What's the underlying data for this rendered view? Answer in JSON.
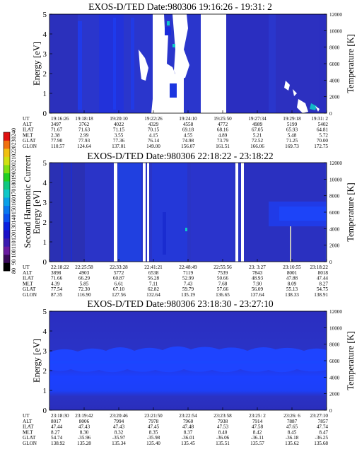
{
  "colorbar": {
    "label": "Second Harmonic Current",
    "ticks": [
      "80",
      "90",
      "100",
      "110",
      "120",
      "130",
      "140",
      "150",
      "160",
      "170",
      "180",
      "190",
      "200",
      "210",
      "220",
      "230",
      "240"
    ],
    "colors": [
      "#000000",
      "#3a0a5a",
      "#6a1aa0",
      "#3a1ab0",
      "#1a10c8",
      "#0a20e0",
      "#0a50f0",
      "#0a78f0",
      "#0aa0e8",
      "#10c8c8",
      "#10c880",
      "#20d020",
      "#80e010",
      "#d0e010",
      "#f0c010",
      "#f07010",
      "#e01010"
    ]
  },
  "row_labels": [
    "UT",
    "ALT",
    "ILAT",
    "MLT",
    "GLAT",
    "GLON"
  ],
  "panels": [
    {
      "title": "EXOS-D/TED   Date:980306  19:16:26 - 19:31: 2",
      "ylabel": "Energy [eV]",
      "y2label": "Temperature [K]",
      "yticks": [
        "0",
        "1",
        "2",
        "3",
        "4",
        "5"
      ],
      "y2ticks": [
        "0",
        "2000",
        "4000",
        "6000",
        "8000",
        "10000",
        "12000"
      ],
      "ylim": [
        0,
        5
      ],
      "y2lim": [
        0,
        12000
      ],
      "ephemeris": [
        {
          "UT": "19:16:26",
          "ALT": "3497",
          "ILAT": "71.67",
          "MLT": "2.38",
          "GLAT": "77.90",
          "GLON": "110.57"
        },
        {
          "UT": "19:18:18",
          "ALT": "3762",
          "ILAT": "71.63",
          "MLT": "2.99",
          "GLAT": "77.93",
          "GLON": "124.64"
        },
        {
          "UT": "19:20:10",
          "ALT": "4022",
          "ILAT": "71.15",
          "MLT": "3.55",
          "GLAT": "77.36",
          "GLON": "137.01"
        },
        {
          "UT": "19:22:26",
          "ALT": "4329",
          "ILAT": "70.15",
          "MLT": "4.15",
          "GLAT": "76.14",
          "GLON": "149.00"
        },
        {
          "UT": "19:24:10",
          "ALT": "4558",
          "ILAT": "69.18",
          "MLT": "4.55",
          "GLAT": "74.98",
          "GLON": "156.07"
        },
        {
          "UT": "19:25:50",
          "ALT": "4772",
          "ILAT": "68.16",
          "MLT": "4.89",
          "GLAT": "73.79",
          "GLON": "161.51"
        },
        {
          "UT": "19:27:34",
          "ALT": "4989",
          "ILAT": "67.05",
          "MLT": "5.21",
          "GLAT": "72.52",
          "GLON": "166.06"
        },
        {
          "UT": "19:29:18",
          "ALT": "5199",
          "ILAT": "65.93",
          "MLT": "5.48",
          "GLAT": "71.25",
          "GLON": "169.73"
        },
        {
          "UT": "19:31: 2",
          "ALT": "5402",
          "ILAT": "64.81",
          "MLT": "5.72",
          "GLAT": "70.00",
          "GLON": "172.75"
        }
      ]
    },
    {
      "title": "EXOS-D/TED   Date:980306  22:18:22 - 23:18:22",
      "ylabel": "Energy [eV]",
      "y2label": "Temperature [K]",
      "yticks": [
        "0",
        "1",
        "2",
        "3",
        "4",
        "5"
      ],
      "y2ticks": [
        "0",
        "2000",
        "4000",
        "6000",
        "8000",
        "10000",
        "12000"
      ],
      "ylim": [
        0,
        5
      ],
      "y2lim": [
        0,
        12000
      ],
      "ephemeris": [
        {
          "UT": "22:18:22",
          "ALT": "3898",
          "ILAT": "71.66",
          "MLT": "4.39",
          "GLAT": "77.54",
          "GLON": "87.35"
        },
        {
          "UT": "22:25:58",
          "ALT": "4903",
          "ILAT": "66.29",
          "MLT": "5.85",
          "GLAT": "72.30",
          "GLON": "116.90"
        },
        {
          "UT": "22:33:28",
          "ALT": "5772",
          "ILAT": "60.87",
          "MLT": "6.61",
          "GLAT": "67.10",
          "GLON": "127.56"
        },
        {
          "UT": "22:41:21",
          "ALT": "6538",
          "ILAT": "56.28",
          "MLT": "7.11",
          "GLAT": "62.82",
          "GLON": "132.64"
        },
        {
          "UT": "22:48:49",
          "ALT": "7119",
          "ILAT": "52.99",
          "MLT": "7.43",
          "GLAT": "59.79",
          "GLON": "135.19"
        },
        {
          "UT": "22:55:56",
          "ALT": "7539",
          "ILAT": "50.66",
          "MLT": "7.68",
          "GLAT": "57.66",
          "GLON": "136.65"
        },
        {
          "UT": "23: 3:27",
          "ALT": "7843",
          "ILAT": "48.93",
          "MLT": "7.90",
          "GLAT": "56.09",
          "GLON": "137.64"
        },
        {
          "UT": "23:10:55",
          "ALT": "8001",
          "ILAT": "47.88",
          "MLT": "8.09",
          "GLAT": "55.13",
          "GLON": "138.33"
        },
        {
          "UT": "23:18:22",
          "ALT": "8018",
          "ILAT": "47.44",
          "MLT": "8.27",
          "GLAT": "54.75",
          "GLON": "138.91"
        }
      ]
    },
    {
      "title": "EXOS-D/TED   Date:980306  23:18:30 - 23:27:10",
      "ylabel": "Energy [eV]",
      "y2label": "Temperature [K]",
      "yticks": [
        "0",
        "1",
        "2",
        "3",
        "4",
        "5"
      ],
      "y2ticks": [
        "0",
        "2000",
        "4000",
        "6000",
        "8000",
        "10000",
        "12000"
      ],
      "ylim": [
        0,
        5
      ],
      "y2lim": [
        0,
        12000
      ],
      "ephemeris": [
        {
          "UT": "23:18:30",
          "ALT": "8017",
          "ILAT": "47.44",
          "MLT": "8.27",
          "GLAT": "54.74",
          "GLON": "138.92"
        },
        {
          "UT": "23:19:42",
          "ALT": "8006",
          "ILAT": "47.43",
          "MLT": "8.30",
          "GLAT": "-35.96",
          "GLON": "135.28"
        },
        {
          "UT": "23:20:46",
          "ALT": "7994",
          "ILAT": "47.43",
          "MLT": "8.32",
          "GLAT": "-35.97",
          "GLON": "135.34"
        },
        {
          "UT": "23:21:50",
          "ALT": "7978",
          "ILAT": "47.45",
          "MLT": "8.35",
          "GLAT": "-35.98",
          "GLON": "135.40"
        },
        {
          "UT": "23:22:54",
          "ALT": "7960",
          "ILAT": "47.48",
          "MLT": "8.37",
          "GLAT": "-36.01",
          "GLON": "135.45"
        },
        {
          "UT": "23:23:58",
          "ALT": "7938",
          "ILAT": "47.53",
          "MLT": "8.40",
          "GLAT": "-36.06",
          "GLON": "135.51"
        },
        {
          "UT": "23:25: 2",
          "ALT": "7914",
          "ILAT": "47.58",
          "MLT": "8.42",
          "GLAT": "-36.11",
          "GLON": "135.57"
        },
        {
          "UT": "23:26: 6",
          "ALT": "7887",
          "ILAT": "47.65",
          "MLT": "8.45",
          "GLAT": "-36.18",
          "GLON": "135.62"
        },
        {
          "UT": "23:27:10",
          "ALT": "7857",
          "ILAT": "47.74",
          "MLT": "8.47",
          "GLAT": "-36.25",
          "GLON": "135.68"
        }
      ]
    }
  ],
  "chart_data": {
    "type": "heatmap",
    "colorbar_label": "Second Harmonic Current",
    "colorbar_range": [
      80,
      240
    ],
    "panels": [
      {
        "title": "EXOS-D/TED   Date:980306  19:16:26 - 19:31: 2",
        "x_start": "19:16:26",
        "x_end": "19:31: 2",
        "ylabel": "Energy [eV]",
        "ylim": [
          0,
          5
        ],
        "y2label": "Temperature [K]",
        "y2lim": [
          0,
          12000
        ]
      },
      {
        "title": "EXOS-D/TED   Date:980306  22:18:22 - 23:18:22",
        "x_start": "22:18:22",
        "x_end": "23:18:22",
        "ylabel": "Energy [eV]",
        "ylim": [
          0,
          5
        ],
        "y2label": "Temperature [K]",
        "y2lim": [
          0,
          12000
        ]
      },
      {
        "title": "EXOS-D/TED   Date:980306  23:18:30 - 23:27:10",
        "x_start": "23:18:30",
        "x_end": "23:27:10",
        "ylabel": "Energy [eV]",
        "ylim": [
          0,
          5
        ],
        "y2label": "Temperature [K]",
        "y2lim": [
          0,
          12000
        ]
      }
    ]
  }
}
